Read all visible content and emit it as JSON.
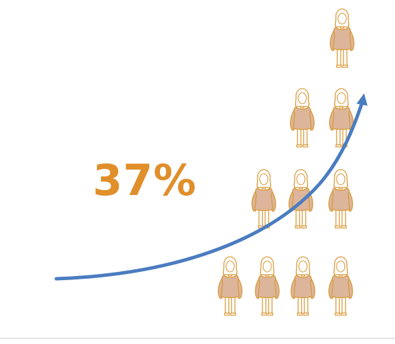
{
  "stat": {
    "value_text": "37%"
  },
  "colors": {
    "accent_text": "#e08f2b",
    "figure_fill": "#dcb59a",
    "figure_stroke": "#d89a3a",
    "arrow": "#4a7cc0"
  },
  "figures": {
    "icon": "woman-figure-icon",
    "rows": [
      1,
      2,
      3,
      4
    ]
  },
  "arrow": {
    "icon": "growth-arrow-icon",
    "direction": "up-right"
  }
}
